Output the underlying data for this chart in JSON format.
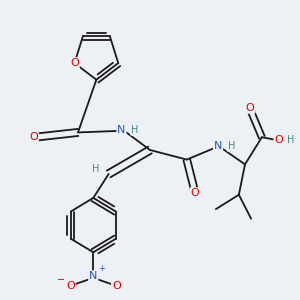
{
  "background_color": "#edf0f5",
  "bond_color": "#1a1a1a",
  "atom_colors": {
    "O": "#dd0000",
    "N": "#2255cc",
    "H": "#448888",
    "C": "#1a1a1a"
  }
}
